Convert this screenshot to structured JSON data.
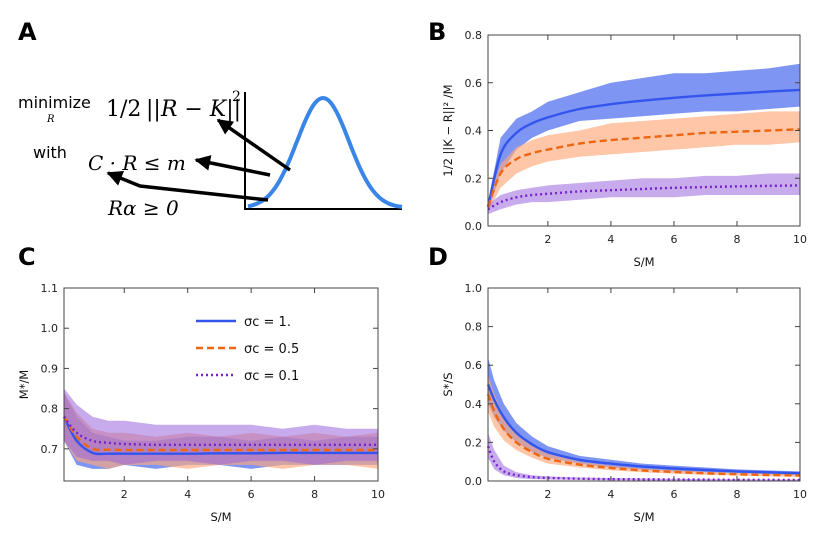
{
  "panel_labels": {
    "a": "A",
    "b": "B",
    "c": "C",
    "d": "D"
  },
  "panel_a": {
    "minimize_word": "minimize",
    "minimize_sub": "R",
    "objective_frac": "1/2",
    "objective_expr": "||R − K||",
    "objective_power": "2",
    "with_word": "with",
    "constraint_expr": "C · R ≤ m",
    "nonneg_expr": "Rα ≥ 0"
  },
  "colors": {
    "blue": "#3355ee",
    "orange": "#ee6611",
    "purple": "#7722cc",
    "blue_band": "#4c6cee",
    "orange_band": "#ffa87a",
    "purple_band": "#9966dd",
    "bell": "#3a86e8"
  },
  "legend": [
    {
      "label": "σc = 1.",
      "style": "solid",
      "color": "#3355ee"
    },
    {
      "label": "σc = 0.5",
      "style": "dashed",
      "color": "#ee6611"
    },
    {
      "label": "σc = 0.1",
      "style": "dotted",
      "color": "#7722cc"
    }
  ],
  "chart_data": [
    {
      "id": "B",
      "type": "line",
      "xlabel": "S/M",
      "ylabel": "1/2 ||K − R||² /M",
      "xlim": [
        0.1,
        10
      ],
      "ylim": [
        0,
        0.8
      ],
      "xticks": [
        2,
        4,
        6,
        8,
        10
      ],
      "yticks": [
        0.0,
        0.2,
        0.4,
        0.6,
        0.8
      ],
      "x": [
        0.1,
        0.5,
        1,
        1.5,
        2,
        3,
        4,
        5,
        6,
        7,
        8,
        9,
        10
      ],
      "series": [
        {
          "name": "σc = 1.",
          "color": "#3355ee",
          "style": "solid",
          "values": [
            0.08,
            0.3,
            0.39,
            0.43,
            0.455,
            0.49,
            0.51,
            0.525,
            0.537,
            0.547,
            0.555,
            0.563,
            0.57
          ],
          "lower": [
            0.06,
            0.22,
            0.32,
            0.37,
            0.4,
            0.44,
            0.45,
            0.46,
            0.47,
            0.48,
            0.48,
            0.49,
            0.5
          ],
          "upper": [
            0.1,
            0.37,
            0.45,
            0.48,
            0.52,
            0.56,
            0.6,
            0.62,
            0.64,
            0.64,
            0.65,
            0.66,
            0.68
          ]
        },
        {
          "name": "σc = 0.5",
          "color": "#ee6611",
          "style": "dashed",
          "values": [
            0.08,
            0.22,
            0.28,
            0.305,
            0.32,
            0.345,
            0.36,
            0.37,
            0.38,
            0.39,
            0.395,
            0.4,
            0.405
          ],
          "lower": [
            0.06,
            0.16,
            0.22,
            0.25,
            0.27,
            0.29,
            0.3,
            0.31,
            0.32,
            0.33,
            0.34,
            0.34,
            0.35
          ],
          "upper": [
            0.1,
            0.26,
            0.33,
            0.36,
            0.38,
            0.4,
            0.43,
            0.44,
            0.45,
            0.46,
            0.47,
            0.48,
            0.48
          ]
        },
        {
          "name": "σc = 0.1",
          "color": "#7722cc",
          "style": "dotted",
          "values": [
            0.07,
            0.1,
            0.12,
            0.13,
            0.135,
            0.145,
            0.15,
            0.155,
            0.16,
            0.163,
            0.166,
            0.168,
            0.17
          ],
          "lower": [
            0.05,
            0.07,
            0.09,
            0.1,
            0.1,
            0.11,
            0.12,
            0.12,
            0.12,
            0.13,
            0.13,
            0.13,
            0.13
          ],
          "upper": [
            0.09,
            0.13,
            0.15,
            0.16,
            0.17,
            0.18,
            0.19,
            0.2,
            0.2,
            0.21,
            0.21,
            0.22,
            0.22
          ]
        }
      ]
    },
    {
      "id": "C",
      "type": "line",
      "xlabel": "S/M",
      "ylabel": "M*/M",
      "xlim": [
        0.1,
        10
      ],
      "ylim": [
        0.62,
        1.1
      ],
      "xticks": [
        2,
        4,
        6,
        8,
        10
      ],
      "yticks": [
        0.7,
        0.8,
        0.9,
        1.0,
        1.1
      ],
      "x": [
        0.1,
        0.5,
        1,
        1.5,
        2,
        3,
        4,
        5,
        6,
        7,
        8,
        9,
        10
      ],
      "series": [
        {
          "name": "σc = 1.",
          "color": "#3355ee",
          "style": "solid",
          "values": [
            0.78,
            0.72,
            0.69,
            0.688,
            0.688,
            0.688,
            0.688,
            0.689,
            0.689,
            0.69,
            0.69,
            0.69,
            0.69
          ],
          "lower": [
            0.72,
            0.66,
            0.65,
            0.65,
            0.66,
            0.65,
            0.66,
            0.66,
            0.65,
            0.66,
            0.66,
            0.66,
            0.66
          ],
          "upper": [
            0.84,
            0.78,
            0.74,
            0.73,
            0.72,
            0.72,
            0.73,
            0.73,
            0.72,
            0.73,
            0.72,
            0.73,
            0.73
          ]
        },
        {
          "name": "σc = 0.5",
          "color": "#ee6611",
          "style": "dashed",
          "values": [
            0.78,
            0.73,
            0.7,
            0.698,
            0.697,
            0.697,
            0.697,
            0.697,
            0.697,
            0.697,
            0.697,
            0.697,
            0.697
          ],
          "lower": [
            0.72,
            0.67,
            0.66,
            0.65,
            0.66,
            0.66,
            0.65,
            0.66,
            0.66,
            0.65,
            0.66,
            0.66,
            0.65
          ],
          "upper": [
            0.84,
            0.79,
            0.75,
            0.74,
            0.74,
            0.73,
            0.74,
            0.73,
            0.74,
            0.73,
            0.74,
            0.73,
            0.74
          ]
        },
        {
          "name": "σc = 0.1",
          "color": "#7722cc",
          "style": "dotted",
          "values": [
            0.78,
            0.74,
            0.72,
            0.715,
            0.712,
            0.71,
            0.71,
            0.71,
            0.71,
            0.71,
            0.71,
            0.71,
            0.71
          ],
          "lower": [
            0.72,
            0.68,
            0.67,
            0.67,
            0.66,
            0.67,
            0.67,
            0.66,
            0.67,
            0.67,
            0.66,
            0.67,
            0.67
          ],
          "upper": [
            0.85,
            0.81,
            0.78,
            0.77,
            0.77,
            0.76,
            0.76,
            0.76,
            0.76,
            0.75,
            0.76,
            0.75,
            0.75
          ]
        }
      ]
    },
    {
      "id": "D",
      "type": "line",
      "xlabel": "S/M",
      "ylabel": "S*/S",
      "xlim": [
        0.1,
        10
      ],
      "ylim": [
        0,
        1.0
      ],
      "xticks": [
        2,
        4,
        6,
        8,
        10
      ],
      "yticks": [
        0.0,
        0.2,
        0.4,
        0.6,
        0.8,
        1.0
      ],
      "x": [
        0.1,
        0.3,
        0.6,
        1,
        1.5,
        2,
        3,
        4,
        5,
        6,
        7,
        8,
        9,
        10
      ],
      "series": [
        {
          "name": "σc = 1.",
          "color": "#3355ee",
          "style": "solid",
          "values": [
            0.5,
            0.42,
            0.33,
            0.25,
            0.19,
            0.15,
            0.11,
            0.09,
            0.075,
            0.065,
            0.057,
            0.05,
            0.045,
            0.04
          ],
          "lower": [
            0.4,
            0.33,
            0.26,
            0.2,
            0.15,
            0.12,
            0.09,
            0.07,
            0.06,
            0.05,
            0.045,
            0.04,
            0.035,
            0.03
          ],
          "upper": [
            0.64,
            0.52,
            0.4,
            0.3,
            0.23,
            0.18,
            0.13,
            0.11,
            0.09,
            0.08,
            0.07,
            0.06,
            0.055,
            0.05
          ]
        },
        {
          "name": "σc = 0.5",
          "color": "#ee6611",
          "style": "dashed",
          "values": [
            0.45,
            0.36,
            0.27,
            0.2,
            0.15,
            0.115,
            0.085,
            0.068,
            0.055,
            0.047,
            0.04,
            0.035,
            0.031,
            0.028
          ],
          "lower": [
            0.36,
            0.28,
            0.21,
            0.16,
            0.12,
            0.09,
            0.07,
            0.055,
            0.045,
            0.038,
            0.032,
            0.028,
            0.025,
            0.022
          ],
          "upper": [
            0.55,
            0.45,
            0.33,
            0.24,
            0.18,
            0.14,
            0.1,
            0.08,
            0.065,
            0.056,
            0.048,
            0.042,
            0.037,
            0.034
          ]
        },
        {
          "name": "σc = 0.1",
          "color": "#7722cc",
          "style": "dotted",
          "values": [
            0.18,
            0.1,
            0.05,
            0.03,
            0.02,
            0.016,
            0.012,
            0.01,
            0.009,
            0.008,
            0.007,
            0.006,
            0.006,
            0.005
          ],
          "lower": [
            0.12,
            0.06,
            0.03,
            0.015,
            0.01,
            0.008,
            0.006,
            0.005,
            0.004,
            0.004,
            0.003,
            0.003,
            0.003,
            0.002
          ],
          "upper": [
            0.25,
            0.16,
            0.08,
            0.045,
            0.03,
            0.024,
            0.018,
            0.015,
            0.013,
            0.011,
            0.01,
            0.009,
            0.008,
            0.008
          ]
        }
      ]
    }
  ]
}
